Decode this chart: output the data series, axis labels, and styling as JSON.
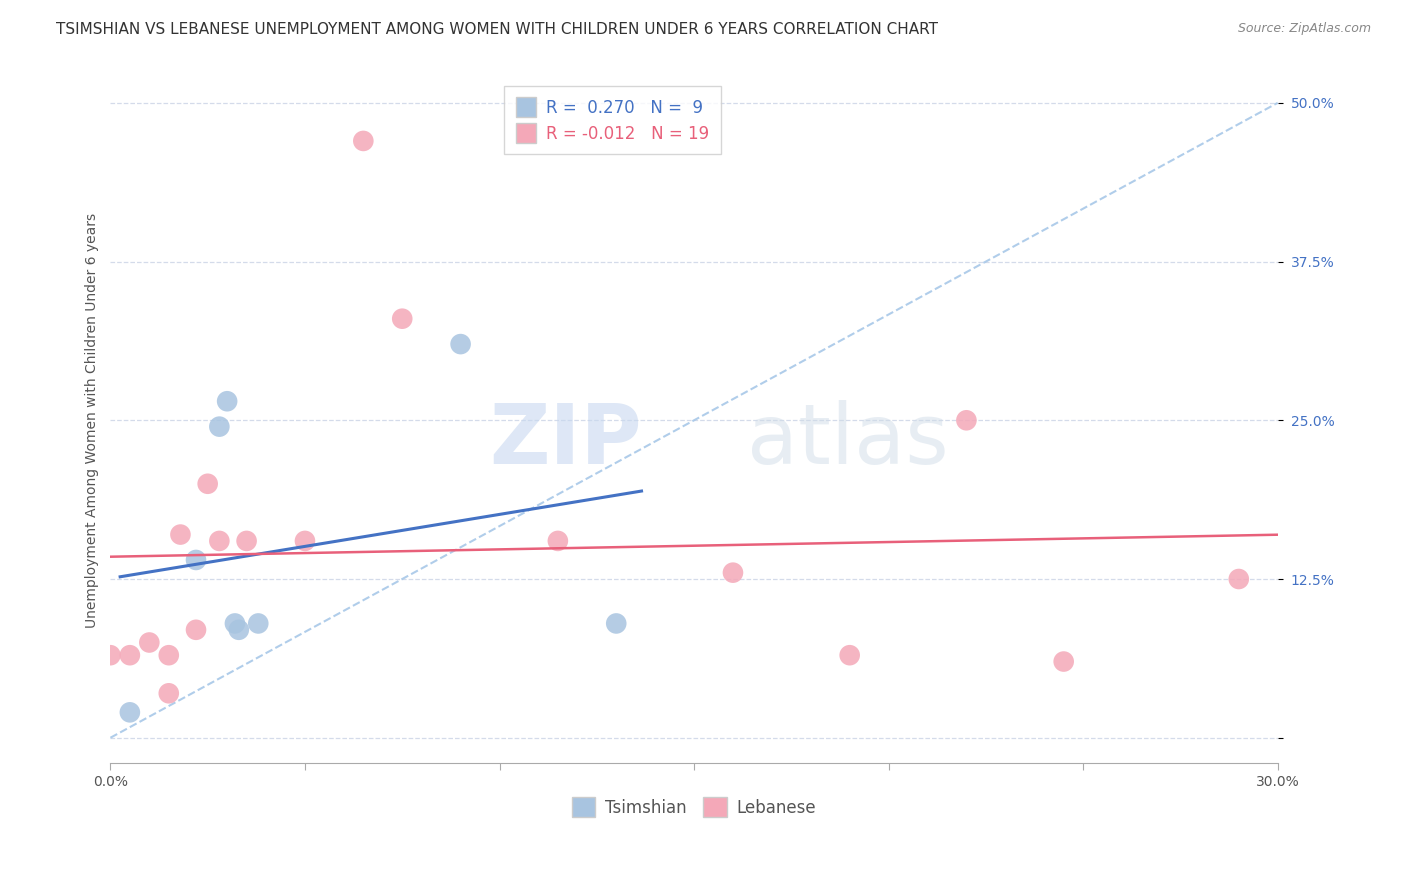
{
  "title": "TSIMSHIAN VS LEBANESE UNEMPLOYMENT AMONG WOMEN WITH CHILDREN UNDER 6 YEARS CORRELATION CHART",
  "source": "Source: ZipAtlas.com",
  "ylabel": "Unemployment Among Women with Children Under 6 years",
  "xlabel": "",
  "xlim": [
    0,
    0.3
  ],
  "ylim": [
    -0.02,
    0.52
  ],
  "xticks": [
    0.0,
    0.05,
    0.1,
    0.15,
    0.2,
    0.25,
    0.3
  ],
  "yticks": [
    0.0,
    0.125,
    0.25,
    0.375,
    0.5
  ],
  "tsimshian_x": [
    0.005,
    0.022,
    0.028,
    0.03,
    0.032,
    0.033,
    0.038,
    0.09,
    0.13
  ],
  "tsimshian_y": [
    0.02,
    0.14,
    0.245,
    0.265,
    0.09,
    0.085,
    0.09,
    0.31,
    0.09
  ],
  "lebanese_x": [
    0.0,
    0.005,
    0.01,
    0.015,
    0.015,
    0.018,
    0.022,
    0.025,
    0.028,
    0.035,
    0.05,
    0.065,
    0.075,
    0.115,
    0.16,
    0.19,
    0.22,
    0.245,
    0.29
  ],
  "lebanese_y": [
    0.065,
    0.065,
    0.075,
    0.035,
    0.065,
    0.16,
    0.085,
    0.2,
    0.155,
    0.155,
    0.155,
    0.47,
    0.33,
    0.155,
    0.13,
    0.065,
    0.25,
    0.06,
    0.125
  ],
  "tsimshian_R": 0.27,
  "tsimshian_N": 9,
  "lebanese_R": -0.012,
  "lebanese_N": 19,
  "tsimshian_color": "#a8c4e0",
  "lebanese_color": "#f4a8b8",
  "tsimshian_line_color": "#4472c4",
  "lebanese_line_color": "#e8607a",
  "diagonal_color": "#a8c8e8",
  "watermark_zip": "ZIP",
  "watermark_atlas": "atlas",
  "background_color": "#ffffff",
  "grid_color": "#d0d8e8",
  "title_fontsize": 11,
  "axis_label_fontsize": 10,
  "tick_fontsize": 10,
  "legend_fontsize": 12
}
